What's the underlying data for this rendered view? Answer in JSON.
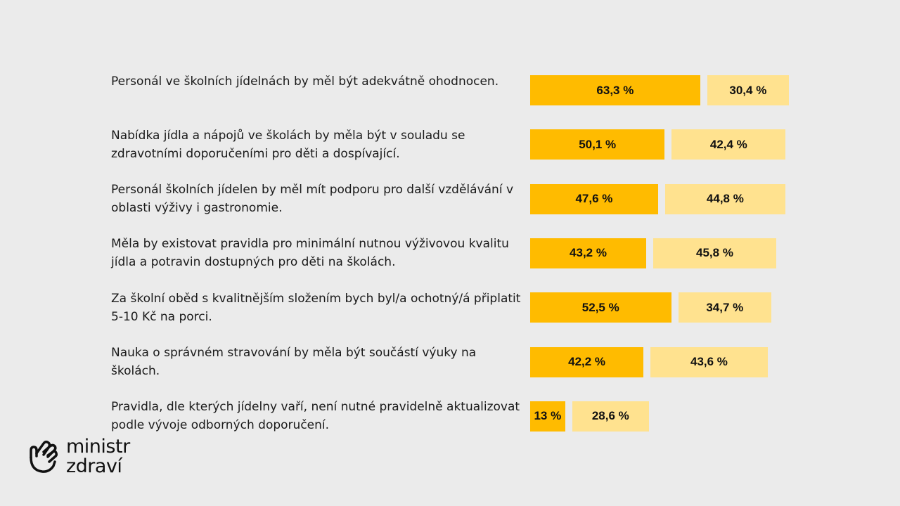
{
  "chart_data": {
    "type": "bar",
    "orientation": "horizontal",
    "stacked": false,
    "colors": {
      "series_a": "#ffbb00",
      "series_b": "#ffe28f",
      "background": "#ebebeb"
    },
    "categories": [
      "Personál ve školních jídelnách by měl být adekvátně ohodnocen.",
      "Nabídka jídla a nápojů ve školách by měla být v souladu se zdravotními doporučeními pro děti a dospívající.",
      "Personál školních jídelen by měl mít podporu pro další vzdělávání v oblasti výživy i gastronomie.",
      "Měla by existovat pravidla pro minimální nutnou výživovou kvalitu jídla a potravin dostupných pro děti na školách.",
      "Za školní oběd s kvalitnějším složením bych byl/a ochotný/á připlatit 5-10 Kč na porci.",
      "Nauka o správném stravování by měla být součástí výuky na školách.",
      "Pravidla, dle kterých jídelny vaří, není nutné pravidelně aktualizovat podle vývoje odborných doporučení."
    ],
    "series": [
      {
        "name": "series_a",
        "values": [
          63.3,
          50.1,
          47.6,
          43.2,
          52.5,
          42.2,
          13.0
        ],
        "labels": [
          "63,3 %",
          "50,1 %",
          "47,6 %",
          "43,2 %",
          "52,5 %",
          "42,2 %",
          "13 %"
        ]
      },
      {
        "name": "series_b",
        "values": [
          30.4,
          42.4,
          44.8,
          45.8,
          34.7,
          43.6,
          28.6
        ],
        "labels": [
          "30,4 %",
          "42,4 %",
          "44,8 %",
          "45,8 %",
          "34,7 %",
          "43,6 %",
          "28,6 %"
        ]
      }
    ]
  },
  "logo": {
    "line1": "ministr",
    "line2": "zdraví",
    "icon": "hand-icon"
  }
}
